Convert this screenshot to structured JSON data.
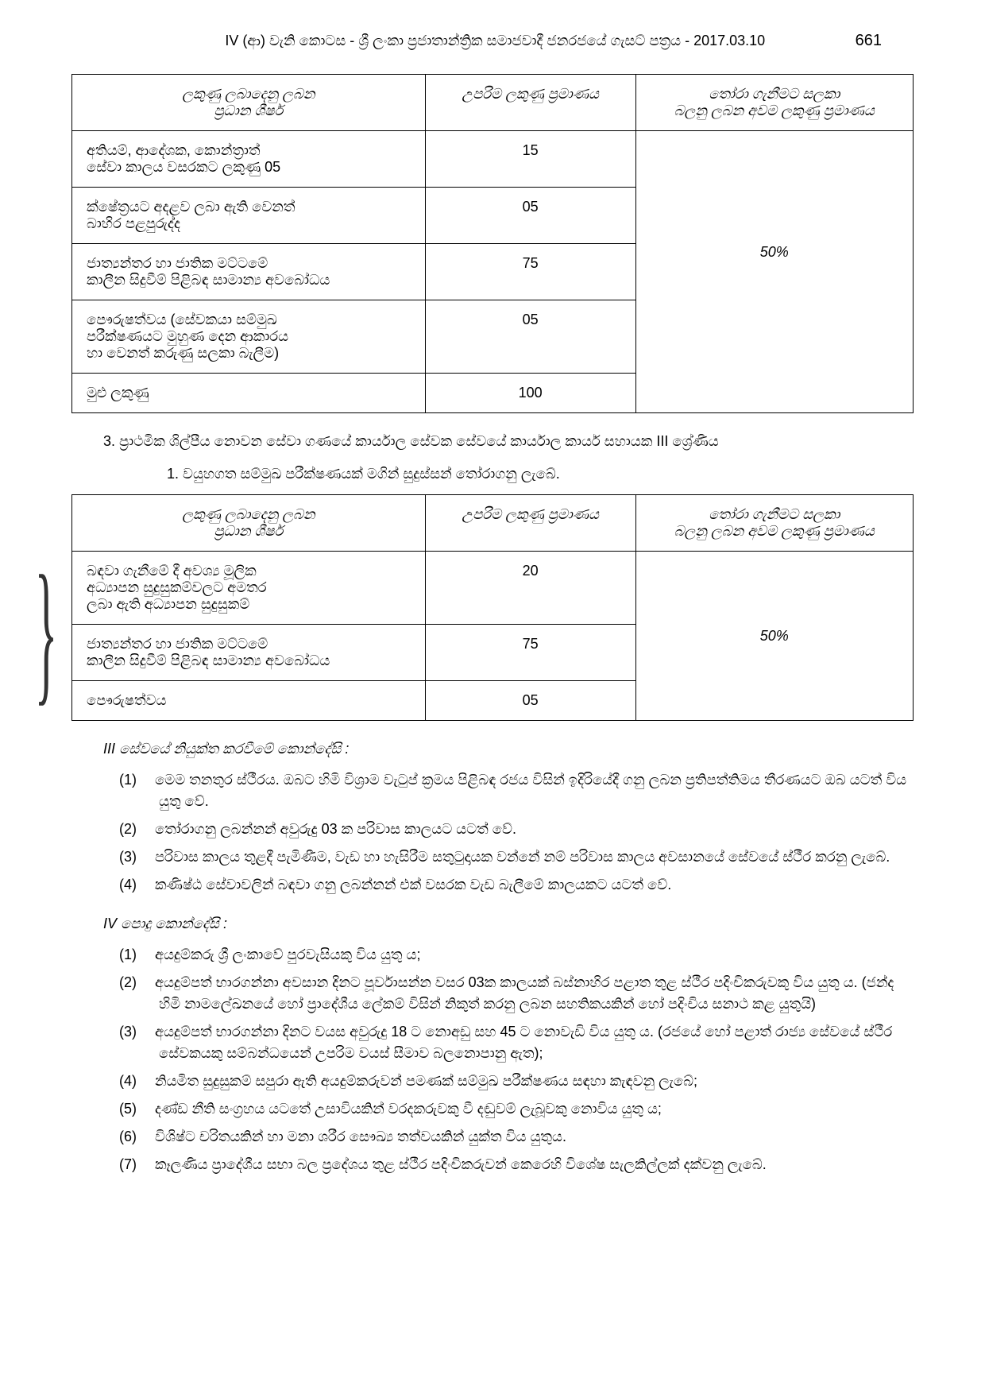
{
  "header": {
    "text": "IV (ආ) වැනි කොටස - ශ්‍රී ලංකා ප්‍රජාතාන්ත්‍රික සමාජවාදී ජනරජයේ ගැසට් පත්‍රය -   2017.03.10",
    "page": "661"
  },
  "table1": {
    "headers": {
      "col1": "ලකුණු ලබාදෙනු ලබන\nප්‍රධාන ශීර්ෂ",
      "col2": "උපරිම ලකුණු ප්‍රමාණය",
      "col3": "තෝරා ගැනීමට සලකා\nබලනු ලබන අවම ලකුණු ප්‍රමාණය"
    },
    "rows": [
      {
        "c1": "අතියම්, ආදේශක, කොන්ත්‍රාත්\nසේවා කාලය වසරකට ලකුණු 05",
        "c2": "15"
      },
      {
        "c1": "ක්ෂේත්‍රයට අදළව ලබා ඇති වෙනත්\nබාහිර පළපුරුද්ද",
        "c2": "05"
      },
      {
        "c1": "ජාත්‍යන්තර හා ජාතික මට්ටමේ\nකාලීන සිදුවීම් පිළිබඳ සාමාන්‍ය අවබෝධය",
        "c2": "75"
      },
      {
        "c1": "පෞරුෂත්වය (සේවකයා සම්මුඛ\nපරීක්ෂණයට මුහුණ දෙන ආකාරය\nහා වෙනත් කරුණු සලකා බැලීම)",
        "c2": "05"
      },
      {
        "c1": "මුළු ලකුණු",
        "c2": "100"
      }
    ],
    "merged": "50%"
  },
  "section3": "3. ප්‍රාථමික ශිල්පීය නොවන සේවා ගණයේ කාර්යාල සේවක සේවයේ කාර්යාල කාර්ය සහායක III ශ්‍රේණිය",
  "sub1": "1.  වයුහගත සම්මුඛ පරීක්ෂණයක් මගින් සුදුස්සන් තෝරාගනු ලැබේ.",
  "table2": {
    "headers": {
      "col1": "ලකුණු ලබාදෙනු ලබන\nප්‍රධාන ශීර්ෂ",
      "col2": "උපරිම ලකුණු ප්‍රමාණය",
      "col3": "තෝරා ගැනීමට සලකා\nබලනු ලබන අවම ලකුණු ප්‍රමාණය"
    },
    "rows": [
      {
        "c1": "බඳවා ගැනීමේ දී අවශ්‍ය මූලික\nඅධ්‍යාපන සුදුසුකම්වලට අමතර\nලබා ඇති අධ්‍යාපන සුදුසුකම්",
        "c2": "20"
      },
      {
        "c1": "ජාත්‍යන්තර හා ජාතික මට්ටමේ\nකාලීන සිදුවීම් පිළිබඳ සාමාන්‍ය අවබෝධය",
        "c2": "75"
      },
      {
        "c1": "පෞරුෂත්වය",
        "c2": "05"
      }
    ],
    "merged": "50%"
  },
  "heading3": "III සේවයේ නියුක්ත කරවීමේ කොන්දේසි :",
  "list3": [
    {
      "n": "(1)",
      "t": "මෙම තනතුර ස්ථීරය. ඔබට හිමි විශ්‍රාම වැටුප් ක්‍රමය පිළිබඳ රජය විසින් ඉදිරියේදී ගනු ලබන ප්‍රතිපත්තිමය තීරණයට ඔබ යටත් විය යුතු වේ."
    },
    {
      "n": "(2)",
      "t": "තෝරාගනු ලබන්නන් අවුරුදු 03 ක පරිවාස කාලයට යටත් වේ."
    },
    {
      "n": "(3)",
      "t": "පරිවාස කාලය තුළදී පැමිණීම, වැඩ හා හැසිරීම සතුටුදායක වන්නේ නම් පරිවාස කාලය අවසානයේ සේවයේ ස්ථීර කරනු ලැබේ."
    },
    {
      "n": "(4)",
      "t": "කණිෂ්ඨ සේවාවලින් බඳවා ගනු ලබන්නන් එක් වසරක වැඩ බැලීමේ කාලයකට යටත් වේ."
    }
  ],
  "heading4": "IV පොදු කොන්දේසි :",
  "list4": [
    {
      "n": "(1)",
      "t": "අයදුම්කරු ශ්‍රී ලංකාවේ පුරවැසියකු විය යුතු ය;"
    },
    {
      "n": "(2)",
      "t": "අයදුම්පත් භාරගන්නා අවසාන දිනට පූර්වාසන්න වසර 03ක කාලයක් බස්නාහිර පළාත තුළ ස්ථීර පදිංචිකරුවකු විය යුතු ය. (ජන්ද හිමි නාමලේඛනයේ හෝ ප්‍රාදේශීය ලේකම් විසින් නිකුත් කරනු ලබන සහතිකයකින් හෝ පදිංචිය සනාථ කළ යුතුයි)"
    },
    {
      "n": "(3)",
      "t": "අයදුම්පත් භාරගන්නා දිනට වයස අවුරුදු 18 ට නොඅඩු සහ 45 ට නොවැඩි විය යුතු ය. (රජයේ හෝ පළාත් රාජ්‍ය සේවයේ ස්ථීර සේවකයකු සම්බන්ධයෙන් උපරිම වයස් සීමාව බලනොපානු ඇත);"
    },
    {
      "n": "(4)",
      "t": "නියමිත සුදුසුකම් සපුරා ඇති අයදුම්කරුවන් පමණක් සම්මුඛ පරීක්ෂණය සඳහා කැඳවනු ලැබේ;"
    },
    {
      "n": "(5)",
      "t": "දණ්ඩ නීති සංග්‍රහය යටතේ උසාවියකින් වරදකරුවකු වී දඬුවම් ලැබූවකු නොවිය යුතු ය;"
    },
    {
      "n": "(6)",
      "t": "විශිෂ්ට චරිතයකින් හා මනා ශරීර සෞඛ්‍ය තත්වයකින් යුක්ත විය යුතුය."
    },
    {
      "n": "(7)",
      "t": "කෑලණිය ප්‍රාදේශීය සභා බල ප්‍රදේශය තුළ ස්ථීර පදිංචිකරුවන් කෙරෙහි විශේෂ සැලකිල්ලක් දක්වනු ලැබේ."
    }
  ]
}
